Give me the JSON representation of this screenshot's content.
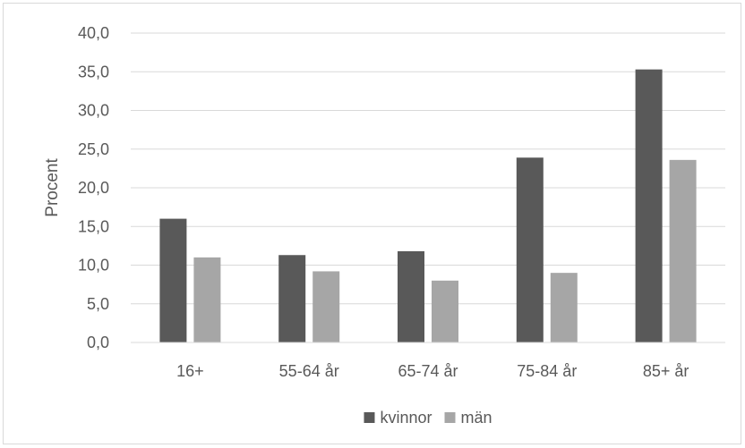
{
  "chart_data": {
    "type": "bar",
    "title": "",
    "xlabel": "",
    "ylabel": "Procent",
    "categories": [
      "16+",
      "55-64 år",
      "65-74 år",
      "75-84 år",
      "85+ år"
    ],
    "series": [
      {
        "name": "kvinnor",
        "color": "#595959",
        "values": [
          16.0,
          11.3,
          11.8,
          23.9,
          35.3
        ]
      },
      {
        "name": "män",
        "color": "#a6a6a6",
        "values": [
          11.0,
          9.2,
          8.0,
          9.0,
          23.6
        ]
      }
    ],
    "ylim": [
      0,
      40
    ],
    "yticks": [
      "0,0",
      "5,0",
      "10,0",
      "15,0",
      "20,0",
      "25,0",
      "30,0",
      "35,0",
      "40,0"
    ],
    "grid": true,
    "gridline_color": "#d9d9d9",
    "legend_position": "bottom"
  }
}
